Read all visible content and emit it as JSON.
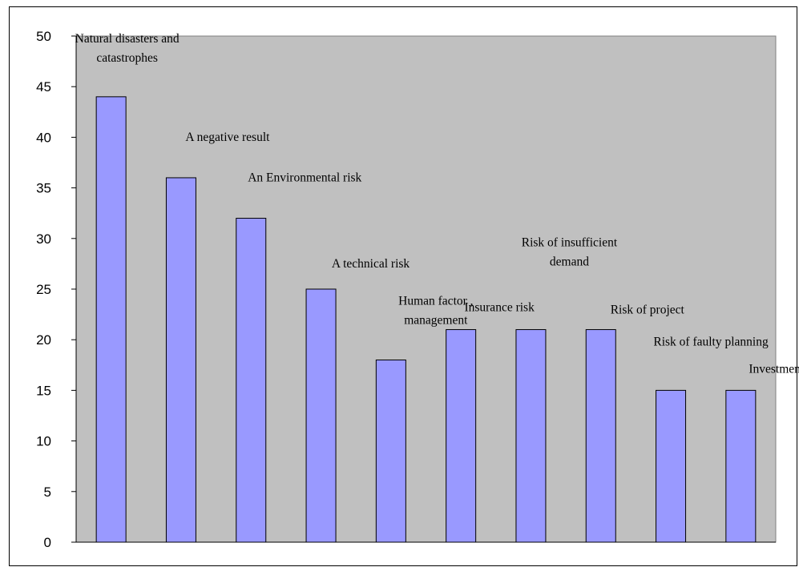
{
  "chart_data": {
    "type": "bar",
    "title": "",
    "xlabel": "",
    "ylabel": "",
    "ylim": [
      0,
      50
    ],
    "yticks": [
      0,
      5,
      10,
      15,
      20,
      25,
      30,
      35,
      40,
      45,
      50
    ],
    "grid": false,
    "legend": "none",
    "categories": [
      [
        "Natural disasters and",
        "catastrophes"
      ],
      [
        "A negative result"
      ],
      [
        "An Environmental risk"
      ],
      [
        "A technical risk"
      ],
      [
        "Human factor ,",
        "management"
      ],
      [
        "Insurance risk"
      ],
      [
        "Risk of insufficient",
        "demand"
      ],
      [
        "Risk of project"
      ],
      [
        "Risk of faulty planning"
      ],
      [
        "Investment  risk"
      ]
    ],
    "values": [
      44,
      36,
      32,
      25,
      18,
      21,
      21,
      21,
      15,
      15
    ],
    "colors": {
      "bar_fill": "#9999ff",
      "plot_background": "#c0c0c0",
      "axis": "#000000"
    }
  }
}
